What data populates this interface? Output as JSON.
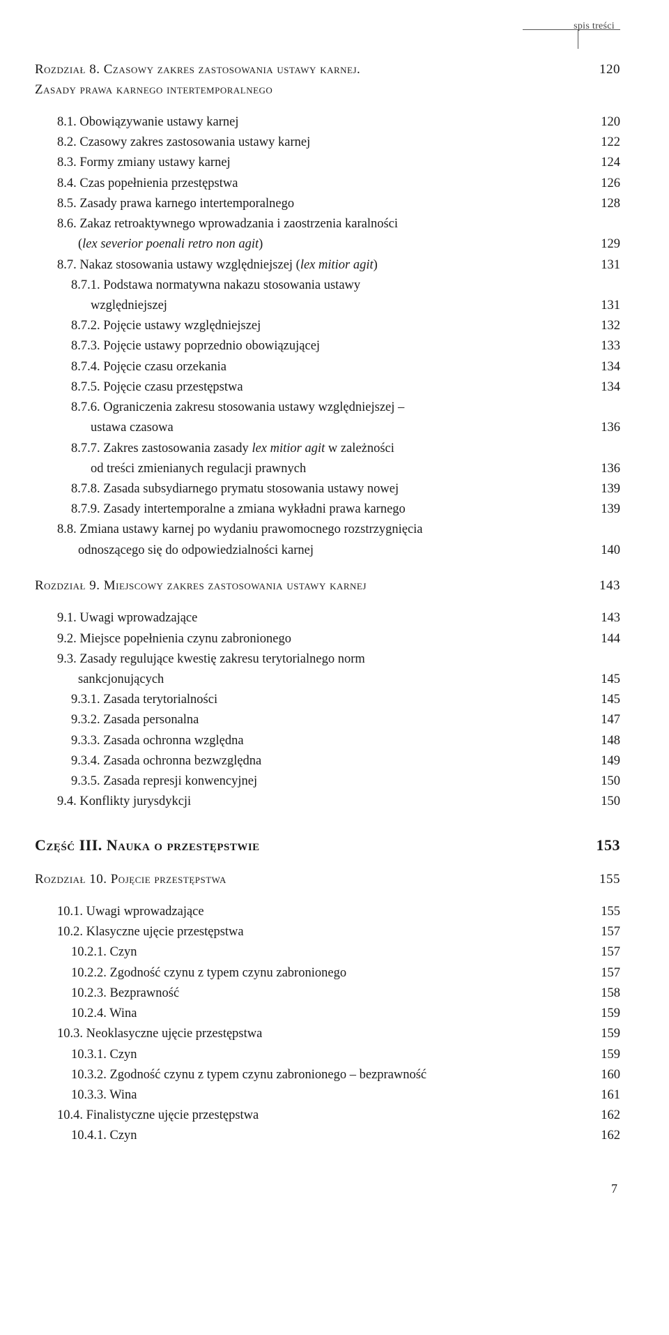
{
  "running_head": "spis treści",
  "page_number": "7",
  "chapter8": {
    "title_a": "Rozdział 8. Czasowy zakres zastosowania ustawy karnej.",
    "title_b": "Zasady prawa karnego intertemporalnego",
    "page": "120",
    "rows": [
      {
        "num": "8.1.",
        "txt": "Obowiązywanie ustawy karnej",
        "pg": "120",
        "ind": 1
      },
      {
        "num": "8.2.",
        "txt": "Czasowy zakres zastosowania ustawy karnej",
        "pg": "122",
        "ind": 1
      },
      {
        "num": "8.3.",
        "txt": "Formy zmiany ustawy karnej",
        "pg": "124",
        "ind": 1
      },
      {
        "num": "8.4.",
        "txt": "Czas popełnienia przestępstwa",
        "pg": "126",
        "ind": 1
      },
      {
        "num": "8.5.",
        "txt": "Zasady prawa karnego intertemporalnego",
        "pg": "128",
        "ind": 1
      },
      {
        "num": "8.6.",
        "txt": "Zakaz retroaktywnego wprowadzania i zaostrzenia karalności",
        "pg": "",
        "ind": 1
      },
      {
        "num": "",
        "txt": "(<i>lex severior poenali retro non agit</i>)",
        "pg": "129",
        "ind": 2,
        "cont": true
      },
      {
        "num": "8.7.",
        "txt": "Nakaz stosowania ustawy względniejszej (<i>lex mitior agit</i>)",
        "pg": "131",
        "ind": 1
      },
      {
        "num": "8.7.1.",
        "txt": "Podstawa normatywna nakazu stosowania ustawy",
        "pg": "",
        "ind": 2
      },
      {
        "num": "",
        "txt": "względniejszej",
        "pg": "131",
        "ind": 2,
        "cont": true,
        "contpad": 80
      },
      {
        "num": "8.7.2.",
        "txt": "Pojęcie ustawy względniejszej",
        "pg": "132",
        "ind": 2
      },
      {
        "num": "8.7.3.",
        "txt": "Pojęcie ustawy poprzednio obowiązującej",
        "pg": "133",
        "ind": 2
      },
      {
        "num": "8.7.4.",
        "txt": "Pojęcie czasu orzekania",
        "pg": "134",
        "ind": 2
      },
      {
        "num": "8.7.5.",
        "txt": "Pojęcie czasu przestępstwa",
        "pg": "134",
        "ind": 2
      },
      {
        "num": "8.7.6.",
        "txt": "Ograniczenia zakresu stosowania ustawy względniejszej –",
        "pg": "",
        "ind": 2
      },
      {
        "num": "",
        "txt": "ustawa czasowa",
        "pg": "136",
        "ind": 2,
        "cont": true,
        "contpad": 80
      },
      {
        "num": "8.7.7.",
        "txt": "Zakres zastosowania zasady <i>lex mitior agit</i> w zależności",
        "pg": "",
        "ind": 2
      },
      {
        "num": "",
        "txt": "od treści zmienianych regulacji prawnych",
        "pg": "136",
        "ind": 2,
        "cont": true,
        "contpad": 80
      },
      {
        "num": "8.7.8.",
        "txt": "Zasada subsydiarnego prymatu stosowania ustawy nowej",
        "pg": "139",
        "ind": 2
      },
      {
        "num": "8.7.9.",
        "txt": "Zasady intertemporalne a zmiana wykładni prawa karnego",
        "pg": "139",
        "ind": 2
      },
      {
        "num": "8.8.",
        "txt": "Zmiana ustawy karnej po wydaniu prawomocnego rozstrzygnięcia",
        "pg": "",
        "ind": 1
      },
      {
        "num": "",
        "txt": "odnoszącego się do odpowiedzialności karnej",
        "pg": "140",
        "ind": 1,
        "cont": true,
        "contpad": 62
      }
    ]
  },
  "chapter9": {
    "title": "Rozdział 9. Miejscowy zakres zastosowania ustawy karnej",
    "page": "143",
    "rows": [
      {
        "num": "9.1.",
        "txt": "Uwagi wprowadzające",
        "pg": "143",
        "ind": 1
      },
      {
        "num": "9.2.",
        "txt": "Miejsce popełnienia czynu zabronionego",
        "pg": "144",
        "ind": 1
      },
      {
        "num": "9.3.",
        "txt": "Zasady regulujące kwestię zakresu terytorialnego norm",
        "pg": "",
        "ind": 1
      },
      {
        "num": "",
        "txt": "sankcjonujących",
        "pg": "145",
        "ind": 1,
        "cont": true,
        "contpad": 62
      },
      {
        "num": "9.3.1.",
        "txt": "Zasada terytorialności",
        "pg": "145",
        "ind": 2
      },
      {
        "num": "9.3.2.",
        "txt": "Zasada personalna",
        "pg": "147",
        "ind": 2
      },
      {
        "num": "9.3.3.",
        "txt": "Zasada ochronna względna",
        "pg": "148",
        "ind": 2
      },
      {
        "num": "9.3.4.",
        "txt": "Zasada ochronna bezwzględna",
        "pg": "149",
        "ind": 2
      },
      {
        "num": "9.3.5.",
        "txt": "Zasada represji konwencyjnej",
        "pg": "150",
        "ind": 2
      },
      {
        "num": "9.4.",
        "txt": "Konflikty jurysdykcji",
        "pg": "150",
        "ind": 1
      }
    ]
  },
  "part3": {
    "title": "Część III. Nauka o przestępstwie",
    "page": "153"
  },
  "chapter10": {
    "title": "Rozdział 10. Pojęcie przestępstwa",
    "page": "155",
    "rows": [
      {
        "num": "10.1.",
        "txt": "Uwagi wprowadzające",
        "pg": "155",
        "ind": 1
      },
      {
        "num": "10.2.",
        "txt": "Klasyczne ujęcie przestępstwa",
        "pg": "157",
        "ind": 1
      },
      {
        "num": "10.2.1.",
        "txt": "Czyn",
        "pg": "157",
        "ind": 2
      },
      {
        "num": "10.2.2.",
        "txt": "Zgodność czynu z typem czynu zabronionego",
        "pg": "157",
        "ind": 2
      },
      {
        "num": "10.2.3.",
        "txt": "Bezprawność",
        "pg": "158",
        "ind": 2
      },
      {
        "num": "10.2.4.",
        "txt": "Wina",
        "pg": "159",
        "ind": 2
      },
      {
        "num": "10.3.",
        "txt": "Neoklasyczne ujęcie przestępstwa",
        "pg": "159",
        "ind": 1
      },
      {
        "num": "10.3.1.",
        "txt": "Czyn",
        "pg": "159",
        "ind": 2
      },
      {
        "num": "10.3.2.",
        "txt": "Zgodność czynu z typem czynu zabronionego – bezprawność",
        "pg": "160",
        "ind": 2
      },
      {
        "num": "10.3.3.",
        "txt": "Wina",
        "pg": "161",
        "ind": 2
      },
      {
        "num": "10.4.",
        "txt": "Finalistyczne ujęcie przestępstwa",
        "pg": "162",
        "ind": 1
      },
      {
        "num": "10.4.1.",
        "txt": "Czyn",
        "pg": "162",
        "ind": 2
      }
    ]
  }
}
